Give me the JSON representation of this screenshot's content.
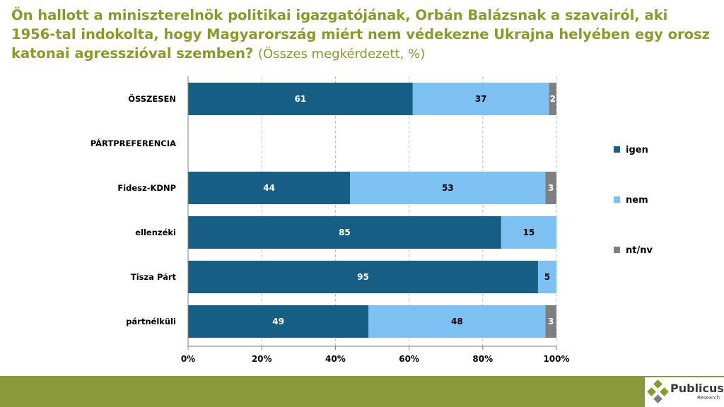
{
  "title": {
    "main": "Ön hallott a miniszterelnök politikai igazgatójának, Orbán Balázsnak a szavairól, aki 1956-tal indokolta, hogy Magyarország miért nem védekezne Ukrajna helyében egy orosz katonai agresszióval szemben?",
    "sub": "(Összes megkérdezett, %)"
  },
  "chart_data": {
    "type": "bar",
    "orientation": "horizontal",
    "stacked": true,
    "categories": [
      "ÖSSZESEN",
      "PÁRTPREFERENCIA",
      "Fidesz-KDNP",
      "ellenzéki",
      "Tisza Párt",
      "pártnélküli"
    ],
    "series": [
      {
        "name": "igen",
        "color": "#165e83",
        "label_color": "#ffffff",
        "values": [
          61,
          null,
          44,
          85,
          95,
          49
        ]
      },
      {
        "name": "nem",
        "color": "#7dc1f2",
        "label_color": "#000000",
        "values": [
          37,
          null,
          53,
          15,
          5,
          48
        ]
      },
      {
        "name": "nt/nv",
        "color": "#7f7f7f",
        "label_color": "#ffffff",
        "values": [
          2,
          null,
          3,
          null,
          null,
          3
        ]
      }
    ],
    "xlim": [
      0,
      100
    ],
    "xticks": [
      "0%",
      "20%",
      "40%",
      "60%",
      "80%",
      "100%"
    ],
    "grid": "vertical dashed",
    "legend_position": "right"
  },
  "logo": {
    "name": "Publicus",
    "sub": "Research"
  },
  "colors": {
    "accent": "#8a9a28",
    "footer": "#8a9a3a"
  }
}
